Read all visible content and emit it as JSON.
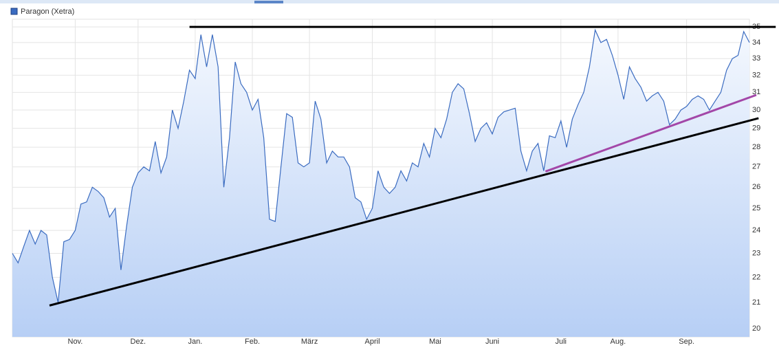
{
  "chart_data": {
    "type": "area",
    "log_y": true,
    "grid": true,
    "legend": "top-left",
    "categories": [
      null,
      null,
      null,
      null,
      null,
      null,
      null,
      null,
      null,
      null,
      null,
      "Nov.",
      null,
      null,
      null,
      null,
      null,
      null,
      null,
      null,
      null,
      null,
      "Dez.",
      null,
      null,
      null,
      null,
      null,
      null,
      null,
      null,
      null,
      "Jan.",
      null,
      null,
      null,
      null,
      null,
      null,
      null,
      null,
      null,
      "Feb.",
      null,
      null,
      null,
      null,
      null,
      null,
      null,
      null,
      null,
      "März",
      null,
      null,
      null,
      null,
      null,
      null,
      null,
      null,
      null,
      null,
      "April",
      null,
      null,
      null,
      null,
      null,
      null,
      null,
      null,
      null,
      null,
      "Mai",
      null,
      null,
      null,
      null,
      null,
      null,
      null,
      null,
      null,
      "Juni",
      null,
      null,
      null,
      null,
      null,
      null,
      null,
      null,
      null,
      null,
      null,
      "Juli",
      null,
      null,
      null,
      null,
      null,
      null,
      null,
      null,
      null,
      "Aug.",
      null,
      null,
      null,
      null,
      null,
      null,
      null,
      null,
      null,
      null,
      null,
      "Sep.",
      null,
      null,
      null,
      null,
      null,
      null,
      null,
      null,
      null,
      null,
      null
    ],
    "series": [
      {
        "name": "Paragon (Xetra)",
        "color": "#3a6bc0",
        "values": [
          23.0,
          22.6,
          23.3,
          24.0,
          23.4,
          24.0,
          23.8,
          22.0,
          21.0,
          23.5,
          23.6,
          24.0,
          25.2,
          25.3,
          26.0,
          25.8,
          25.5,
          24.6,
          25.0,
          22.3,
          24.2,
          26.0,
          26.7,
          27.0,
          26.8,
          28.3,
          26.7,
          27.5,
          30.0,
          29.0,
          30.5,
          32.3,
          31.8,
          34.5,
          32.5,
          34.5,
          32.5,
          26.0,
          28.5,
          32.8,
          31.5,
          31.0,
          30.0,
          30.6,
          28.5,
          24.5,
          24.4,
          27.0,
          29.8,
          29.6,
          27.2,
          27.0,
          27.2,
          30.5,
          29.5,
          27.2,
          27.8,
          27.5,
          27.5,
          27.0,
          25.5,
          25.3,
          24.5,
          25.0,
          26.8,
          26.0,
          25.7,
          26.0,
          26.8,
          26.3,
          27.2,
          27.0,
          28.2,
          27.5,
          29.0,
          28.5,
          29.5,
          31.0,
          31.5,
          31.2,
          29.8,
          28.3,
          29.0,
          29.3,
          28.7,
          29.6,
          29.9,
          30.0,
          30.1,
          27.8,
          26.8,
          27.8,
          28.2,
          26.8,
          28.6,
          28.5,
          29.4,
          28.0,
          29.5,
          30.3,
          31.0,
          32.5,
          34.8,
          34.0,
          34.2,
          33.2,
          32.0,
          30.6,
          32.5,
          31.8,
          31.3,
          30.5,
          30.8,
          31.0,
          30.5,
          29.2,
          29.5,
          30.0,
          30.2,
          30.6,
          30.8,
          30.6,
          30.0,
          30.5,
          31.0,
          32.3,
          33.0,
          33.2,
          34.7,
          34.0
        ]
      }
    ],
    "ylim": [
      19.7,
      35.5
    ],
    "yticks": [
      20,
      21,
      22,
      23,
      24,
      25,
      26,
      27,
      28,
      29,
      30,
      31,
      32,
      33,
      34,
      35
    ],
    "trendlines": [
      {
        "color": "#000000",
        "x": [
          31,
          133.6
        ],
        "values": [
          35,
          35
        ]
      },
      {
        "color": "#000000",
        "x": [
          6.5,
          130.6
        ],
        "values": [
          20.88,
          29.55
        ]
      },
      {
        "color": "#a347a8",
        "x": [
          93.3,
          130.2
        ],
        "values": [
          26.77,
          30.85
        ]
      }
    ]
  }
}
